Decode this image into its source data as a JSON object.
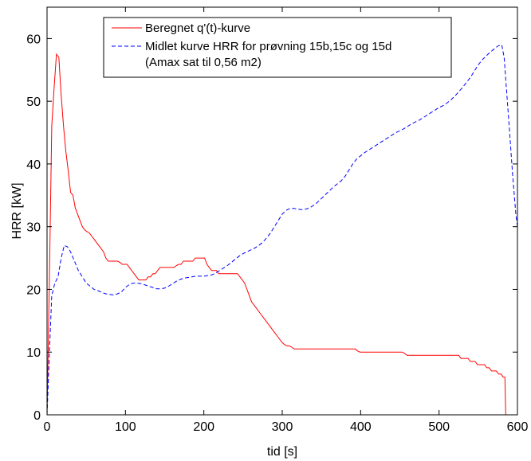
{
  "chart_data": {
    "type": "line",
    "title": "",
    "xlabel": "tid [s]",
    "ylabel": "HRR [kW]",
    "xlim": [
      0,
      600
    ],
    "ylim": [
      0,
      65
    ],
    "xticks": [
      0,
      100,
      200,
      300,
      400,
      500,
      600
    ],
    "yticks": [
      0,
      10,
      20,
      30,
      40,
      50,
      60
    ],
    "grid": false,
    "legend_position": "top-center",
    "series": [
      {
        "name": "Beregnet q'(t)-kurve",
        "color": "#ff0000",
        "style": "solid",
        "x": [
          0,
          3,
          6,
          9,
          12,
          15,
          18,
          21,
          24,
          27,
          30,
          33,
          36,
          39,
          42,
          45,
          48,
          51,
          54,
          57,
          60,
          63,
          66,
          69,
          72,
          75,
          78,
          81,
          84,
          87,
          90,
          93,
          96,
          99,
          102,
          105,
          108,
          111,
          114,
          117,
          120,
          123,
          126,
          129,
          132,
          135,
          138,
          141,
          144,
          147,
          150,
          153,
          156,
          159,
          162,
          165,
          168,
          171,
          174,
          177,
          180,
          183,
          186,
          189,
          192,
          195,
          198,
          201,
          204,
          207,
          210,
          213,
          216,
          219,
          222,
          225,
          228,
          231,
          234,
          237,
          240,
          243,
          246,
          249,
          252,
          255,
          258,
          261,
          264,
          267,
          270,
          273,
          276,
          279,
          282,
          285,
          288,
          291,
          294,
          297,
          300,
          303,
          306,
          309,
          312,
          315,
          318,
          321,
          324,
          327,
          330,
          333,
          336,
          339,
          342,
          345,
          348,
          351,
          354,
          357,
          360,
          363,
          366,
          369,
          372,
          375,
          378,
          381,
          384,
          387,
          390,
          393,
          396,
          399,
          402,
          405,
          408,
          411,
          414,
          417,
          420,
          423,
          426,
          429,
          432,
          435,
          438,
          441,
          444,
          447,
          450,
          453,
          456,
          459,
          462,
          465,
          468,
          471,
          474,
          477,
          480,
          483,
          486,
          489,
          492,
          495,
          498,
          501,
          504,
          507,
          510,
          513,
          516,
          519,
          522,
          525,
          528,
          531,
          534,
          537,
          540,
          543,
          546,
          549,
          552,
          555,
          558,
          561,
          564,
          567,
          570,
          573,
          576,
          579,
          582,
          584,
          585
        ],
        "y": [
          0,
          22,
          46,
          52,
          57.5,
          57,
          51,
          46,
          42,
          39,
          35.5,
          35,
          33,
          32,
          31,
          30,
          29.5,
          29.2,
          29,
          28.5,
          28,
          27.5,
          27,
          26.5,
          26,
          25,
          24.5,
          24.5,
          24.5,
          24.5,
          24.5,
          24.3,
          24,
          24,
          24,
          23.5,
          23,
          22.5,
          22,
          21.5,
          21.5,
          21.5,
          21.5,
          22,
          22,
          22.5,
          22.5,
          23,
          23.5,
          23.5,
          23.5,
          23.5,
          23.5,
          23.5,
          23.5,
          23.8,
          24,
          24,
          24.5,
          24.5,
          24.5,
          24.5,
          24.5,
          25,
          25,
          25,
          25,
          25,
          24,
          23.5,
          23,
          23,
          23,
          22.5,
          22.5,
          22.5,
          22.5,
          22.5,
          22.5,
          22.5,
          22.5,
          22.5,
          22,
          21.5,
          21,
          20,
          19,
          18,
          17.5,
          17,
          16.5,
          16,
          15.5,
          15,
          14.5,
          14,
          13.5,
          13,
          12.5,
          12,
          11.5,
          11.2,
          11,
          11,
          10.8,
          10.5,
          10.5,
          10.5,
          10.5,
          10.5,
          10.5,
          10.5,
          10.5,
          10.5,
          10.5,
          10.5,
          10.5,
          10.5,
          10.5,
          10.5,
          10.5,
          10.5,
          10.5,
          10.5,
          10.5,
          10.5,
          10.5,
          10.5,
          10.5,
          10.5,
          10.5,
          10.5,
          10.2,
          10,
          10,
          10,
          10,
          10,
          10,
          10,
          10,
          10,
          10,
          10,
          10,
          10,
          10,
          10,
          10,
          10,
          10,
          10,
          9.8,
          9.5,
          9.5,
          9.5,
          9.5,
          9.5,
          9.5,
          9.5,
          9.5,
          9.5,
          9.5,
          9.5,
          9.5,
          9.5,
          9.5,
          9.5,
          9.5,
          9.5,
          9.5,
          9.5,
          9.5,
          9.5,
          9.5,
          9.5,
          9,
          9,
          9,
          9,
          8.5,
          8.5,
          8.5,
          8,
          8,
          8,
          8,
          7.5,
          7.5,
          7,
          7,
          7,
          6.5,
          6.5,
          6,
          6,
          0
        ]
      },
      {
        "name": "Midlet kurve HRR for prøvning 15b,15c og 15d (Amax sat til 0,56 m2)",
        "color": "#0000ff",
        "style": "dashed",
        "x": [
          0,
          3,
          6,
          10,
          14,
          18,
          22,
          26,
          30,
          35,
          40,
          45,
          50,
          55,
          60,
          65,
          70,
          75,
          80,
          85,
          90,
          95,
          100,
          105,
          110,
          115,
          120,
          125,
          130,
          135,
          140,
          145,
          150,
          155,
          160,
          165,
          170,
          175,
          180,
          185,
          190,
          195,
          200,
          205,
          210,
          215,
          220,
          225,
          230,
          235,
          240,
          245,
          250,
          255,
          260,
          265,
          270,
          275,
          280,
          285,
          290,
          295,
          300,
          305,
          310,
          315,
          320,
          325,
          330,
          335,
          340,
          345,
          350,
          355,
          360,
          365,
          370,
          375,
          380,
          385,
          390,
          395,
          400,
          405,
          410,
          415,
          420,
          425,
          430,
          435,
          440,
          445,
          450,
          455,
          460,
          465,
          470,
          475,
          480,
          485,
          490,
          495,
          500,
          505,
          510,
          515,
          520,
          525,
          530,
          535,
          540,
          545,
          550,
          555,
          560,
          565,
          570,
          575,
          580,
          583,
          586,
          590,
          594,
          598,
          600
        ],
        "y": [
          0,
          10,
          19,
          21,
          22,
          25,
          27,
          26.8,
          26,
          24.5,
          23,
          22,
          21,
          20.5,
          20,
          19.8,
          19.5,
          19.3,
          19.2,
          19.1,
          19.3,
          19.6,
          20.3,
          20.8,
          21,
          21,
          20.9,
          20.7,
          20.5,
          20.3,
          20.1,
          20.1,
          20.2,
          20.5,
          20.9,
          21.3,
          21.6,
          21.8,
          21.9,
          22,
          22.1,
          22.1,
          22.1,
          22.2,
          22.3,
          22.6,
          23,
          23.4,
          23.8,
          24.3,
          24.8,
          25.3,
          25.7,
          26,
          26.3,
          26.6,
          27,
          27.5,
          28.2,
          29,
          30,
          31,
          32,
          32.6,
          32.9,
          32.9,
          32.8,
          32.7,
          32.8,
          33,
          33.4,
          33.9,
          34.5,
          35.1,
          35.7,
          36.3,
          36.8,
          37.3,
          38,
          39,
          40,
          40.8,
          41.3,
          41.8,
          42.2,
          42.6,
          43,
          43.4,
          43.8,
          44.2,
          44.6,
          45,
          45.3,
          45.6,
          46,
          46.4,
          46.7,
          47,
          47.4,
          47.8,
          48.2,
          48.6,
          49,
          49.3,
          49.7,
          50.2,
          50.8,
          51.5,
          52.2,
          53,
          53.8,
          54.8,
          55.8,
          56.6,
          57.2,
          57.8,
          58.3,
          58.8,
          59,
          57,
          52,
          45,
          38,
          32,
          30
        ]
      }
    ]
  }
}
